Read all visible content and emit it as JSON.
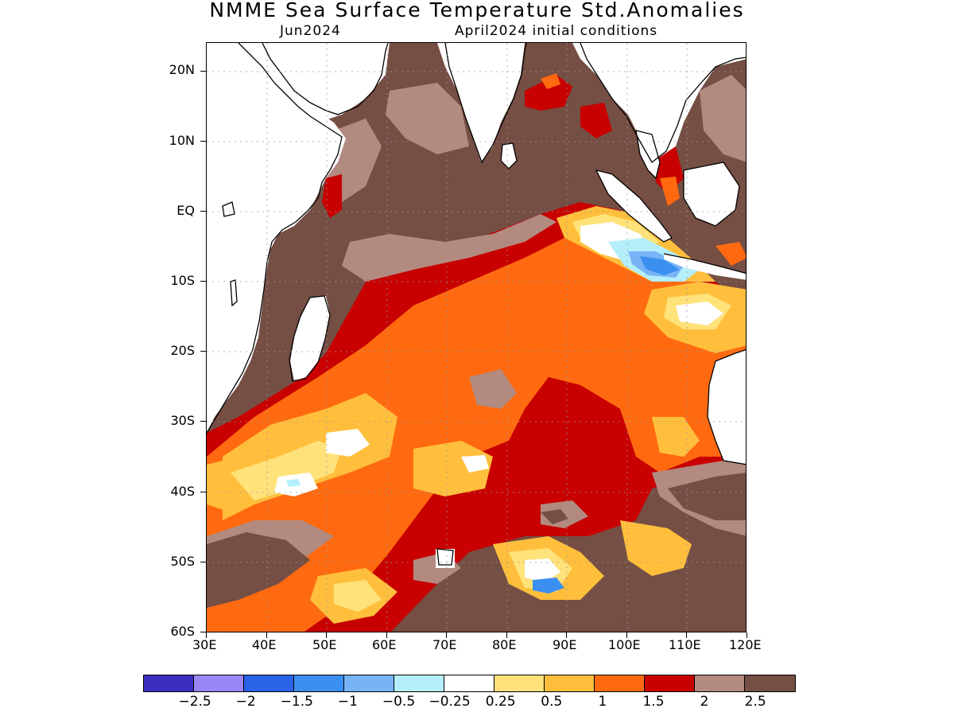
{
  "title": "NMME Sea Surface Temperature Std.Anomalies",
  "subtitle_left": "Jun2024",
  "subtitle_right": "April2024 initial conditions",
  "lat_labels": [
    "20N",
    "10N",
    "EQ",
    "10S",
    "20S",
    "30S",
    "40S",
    "50S",
    "60S"
  ],
  "lon_labels": [
    "30E",
    "40E",
    "50E",
    "60E",
    "70E",
    "80E",
    "90E",
    "100E",
    "110E",
    "120E"
  ],
  "colorbar": {
    "colors": [
      "#3a2fbf",
      "#9a85f5",
      "#2a62e8",
      "#3b8ff0",
      "#78b4f5",
      "#b3eefa",
      "#ffffff",
      "#ffe27a",
      "#ffbf3c",
      "#ff6a10",
      "#c80000",
      "#b28a80",
      "#754e44"
    ],
    "labels": [
      "-2.5",
      "-2",
      "-1.5",
      "-1",
      "-0.5",
      "-0.25",
      "0.25",
      "0.5",
      "1",
      "1.5",
      "2",
      "2.5"
    ]
  },
  "palette": {
    "land": "#ffffff",
    "high_anomaly": "#754e44",
    "very_high": "#b28a80",
    "red": "#c80000",
    "orange": "#ff6a10",
    "light_orange": "#ffbf3c",
    "yellow": "#ffe27a",
    "neutral": "#ffffff",
    "light_blue": "#b3eefa",
    "blue": "#3b8ff0"
  }
}
